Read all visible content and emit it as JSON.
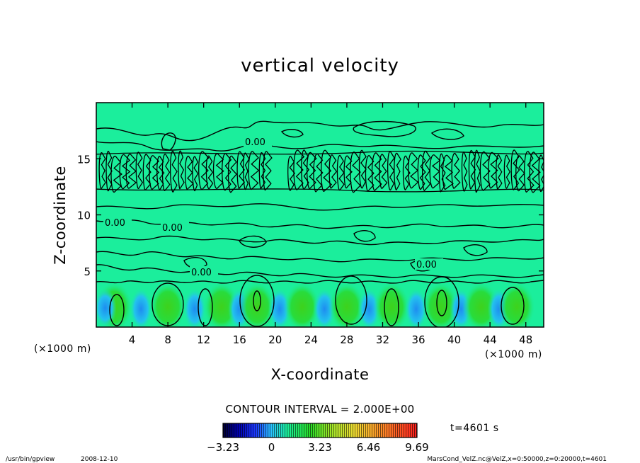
{
  "chart_data": {
    "type": "heatmap",
    "title": "vertical velocity",
    "xlabel": "X-coordinate",
    "ylabel": "Z-coordinate",
    "x_unit": "(×1000 m)",
    "y_unit": "(×1000 m)",
    "xlim": [
      0,
      50
    ],
    "ylim": [
      0,
      20
    ],
    "x_ticks": [
      "4",
      "8",
      "12",
      "16",
      "20",
      "24",
      "28",
      "32",
      "36",
      "40",
      "44",
      "48"
    ],
    "y_ticks": [
      "5",
      "10",
      "15"
    ],
    "contour_interval_text": "CONTOUR INTERVAL = 2.000E+00",
    "contour_labels": [
      "0.00",
      "0.00",
      "0.00",
      "0.00",
      "0.00"
    ],
    "colorbar": {
      "ticks": [
        "−3.23",
        "0",
        "3.23",
        "6.46",
        "9.69"
      ],
      "min": -3.23,
      "max": 9.69
    },
    "updraft_cores_x": [
      2,
      8,
      14,
      18,
      23,
      28,
      33,
      38.5,
      43,
      47
    ]
  },
  "time_label": "t=4601 s",
  "footer": {
    "program": "/usr/bin/gpview",
    "date": "2008-12-10",
    "source": "MarsCond_VelZ.nc@VelZ,x=0:50000,z=0:20000,t=4601"
  },
  "colors": {
    "background_field": "#1bee9c",
    "line": "#000000",
    "updraft": "#1ee02a",
    "downdraft": "#1ba0f0"
  }
}
